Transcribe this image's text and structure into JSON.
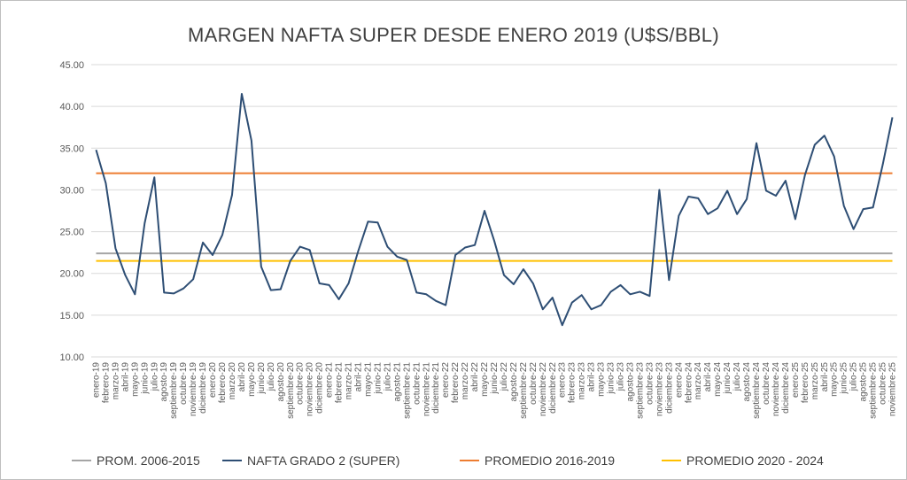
{
  "chart_data": {
    "type": "line",
    "title": "MARGEN NAFTA SUPER DESDE ENERO 2019 (U$S/BBL)",
    "xlabel": "",
    "ylabel": "",
    "ylim": [
      10,
      45
    ],
    "y_ticks": [
      "10.00",
      "15.00",
      "20.00",
      "25.00",
      "30.00",
      "35.00",
      "40.00",
      "45.00"
    ],
    "grid": true,
    "legend_position": "bottom",
    "categories": [
      "enero-19",
      "febrero-19",
      "marzo-19",
      "abril-19",
      "mayo-19",
      "junio-19",
      "julio-19",
      "agosto-19",
      "septiembre-19",
      "octubre-19",
      "noviembre-19",
      "diciembre-19",
      "enero-20",
      "febrero-20",
      "marzo-20",
      "abril-20",
      "mayo-20",
      "junio-20",
      "julio-20",
      "agosto-20",
      "septiembre-20",
      "octubre-20",
      "noviembre-20",
      "diciembre-20",
      "enero-21",
      "febrero-21",
      "marzo-21",
      "abril-21",
      "mayo-21",
      "junio-21",
      "julio-21",
      "agosto-21",
      "septiembre-21",
      "octubre-21",
      "noviembre-21",
      "diciembre-21",
      "enero-22",
      "febrero-22",
      "marzo-22",
      "abril-22",
      "mayo-22",
      "junio-22",
      "julio-22",
      "agosto-22",
      "septiembre-22",
      "octubre-22",
      "noviembre-22",
      "diciembre-22",
      "enero-23",
      "febrero-23",
      "marzo-23",
      "abril-23",
      "mayo-23",
      "junio-23",
      "julio-23",
      "agosto-23",
      "septiembre-23",
      "octubre-23",
      "noviembre-23",
      "diciembre-23",
      "enero-24",
      "febrero-24",
      "marzo-24",
      "abril-24",
      "mayo-24",
      "junio-24",
      "julio-24",
      "agosto-24",
      "septiembre-24",
      "octubre-24",
      "noviembre-24",
      "diciembre-24",
      "enero-25",
      "febrero-25",
      "marzo-25",
      "abril-25",
      "mayo-25",
      "junio-25",
      "julio-25",
      "agosto-25",
      "septiembre-25",
      "octubre-25",
      "noviembre-25"
    ],
    "series": [
      {
        "name": "PROM. 2006-2015",
        "color": "#a5a5a5",
        "kind": "constant",
        "value": 22.4
      },
      {
        "name": "NAFTA GRADO 2 (SUPER)",
        "color": "#2e4e74",
        "kind": "line",
        "values": [
          34.8,
          30.8,
          23.0,
          19.8,
          17.5,
          26.0,
          31.5,
          17.7,
          17.6,
          18.2,
          19.3,
          23.7,
          22.2,
          24.6,
          29.4,
          41.5,
          35.9,
          20.8,
          18.0,
          18.1,
          21.5,
          23.2,
          22.8,
          18.8,
          18.6,
          16.9,
          18.8,
          22.7,
          26.2,
          26.1,
          23.2,
          22.0,
          21.6,
          17.7,
          17.5,
          16.7,
          16.2,
          22.2,
          23.1,
          23.4,
          27.5,
          23.9,
          19.8,
          18.7,
          20.5,
          18.8,
          15.7,
          17.1,
          13.8,
          16.5,
          17.4,
          15.7,
          16.2,
          17.8,
          18.6,
          17.5,
          17.8,
          17.3,
          30.0,
          19.2,
          26.9,
          29.2,
          29.0,
          27.1,
          27.8,
          29.9,
          27.1,
          28.9,
          35.6,
          29.9,
          29.3,
          31.1,
          26.5,
          31.8,
          35.4,
          36.5,
          34.0,
          28.1,
          25.3,
          27.7,
          27.9,
          33.0,
          38.7
        ]
      },
      {
        "name": "PROMEDIO 2016-2019",
        "color": "#ed7d31",
        "kind": "constant",
        "value": 32.0
      },
      {
        "name": "PROMEDIO 2020 - 2024",
        "color": "#ffc000",
        "kind": "constant",
        "value": 21.5
      }
    ]
  }
}
